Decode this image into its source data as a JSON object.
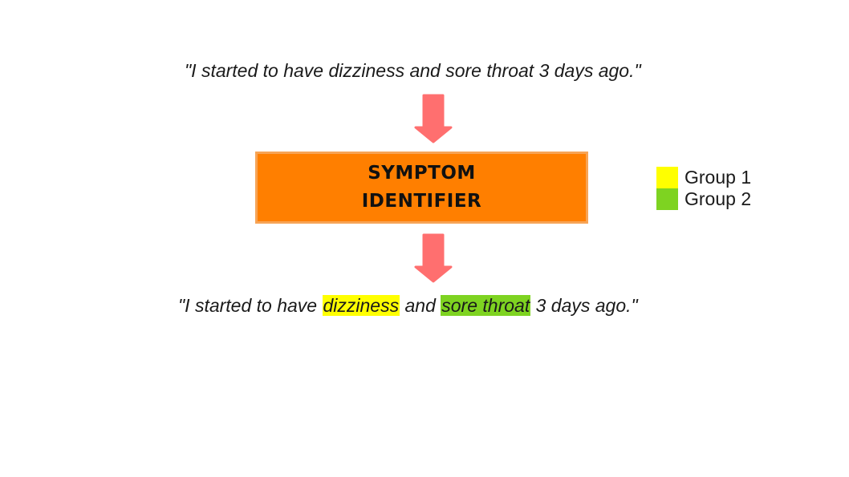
{
  "colors": {
    "arrow": "#ff6f6f",
    "box_fill": "#ff7f00",
    "box_border": "#f7a456",
    "group1": "#ffff00",
    "group2": "#7ed321"
  },
  "input_sentence": "\"I started to have dizziness and sore throat 3 days ago.\"",
  "identifier": {
    "line1": "SYMPTOM",
    "line2": "IDENTIFIER"
  },
  "output_sentence": {
    "part1": "\"I started to have ",
    "highlight1": "dizziness",
    "part2": " and ",
    "highlight2": "sore throat",
    "part3": " 3 days ago.\""
  },
  "legend": [
    {
      "label": "Group 1",
      "color": "#ffff00"
    },
    {
      "label": "Group 2",
      "color": "#7ed321"
    }
  ]
}
